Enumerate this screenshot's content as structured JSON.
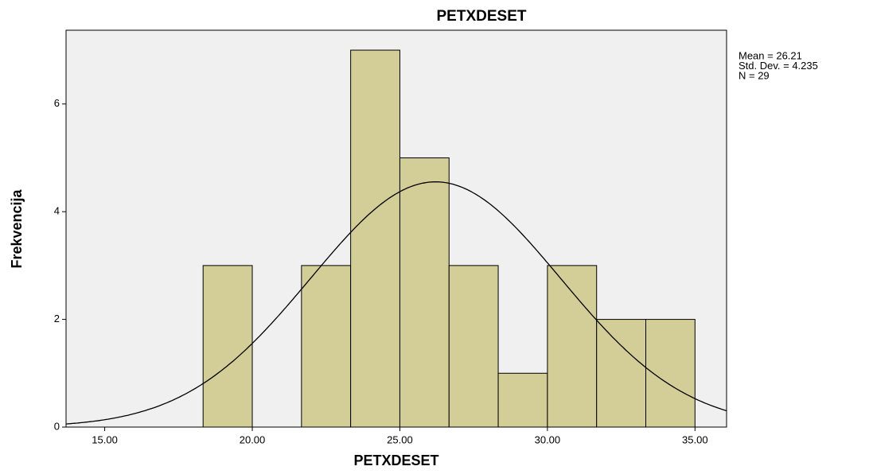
{
  "chart_data": {
    "type": "histogram",
    "title": "PETXDESET",
    "x_label": "PETXDESET",
    "y_label": "Frekvencija",
    "bins": [
      18.333,
      20,
      21.667,
      23.333,
      25,
      26.667,
      28.333,
      30,
      31.667,
      33.333,
      35
    ],
    "values": [
      3,
      0,
      3,
      7,
      5,
      3,
      1,
      3,
      2,
      2
    ],
    "color": "#d3ce97",
    "xlim": [
      13.69,
      36.07
    ],
    "ylim": [
      0,
      7.37
    ],
    "xticks": [
      {
        "value": 15,
        "label": "15.00"
      },
      {
        "value": 20,
        "label": "20.00"
      },
      {
        "value": 25,
        "label": "25.00"
      },
      {
        "value": 30,
        "label": "30.00"
      },
      {
        "value": 35,
        "label": "35.00"
      }
    ],
    "yticks": [
      0,
      2,
      4,
      6
    ],
    "stats": [
      {
        "value": 26.21,
        "label": "Mean = 26.21"
      },
      {
        "value": 4.235,
        "label": "Std. Dev. = 4.235"
      },
      {
        "value": 29,
        "label": "N = 29"
      }
    ]
  }
}
